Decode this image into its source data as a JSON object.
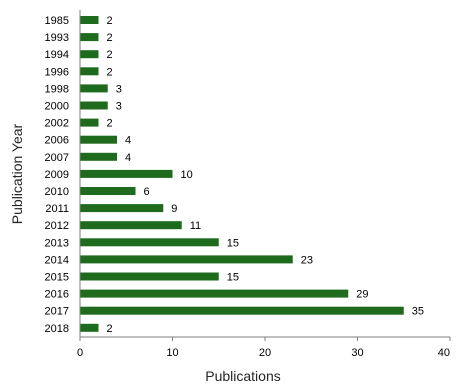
{
  "chart_data": {
    "type": "bar",
    "orientation": "horizontal",
    "categories": [
      "1985",
      "1993",
      "1994",
      "1996",
      "1998",
      "2000",
      "2002",
      "2006",
      "2007",
      "2009",
      "2010",
      "2011",
      "2012",
      "2013",
      "2014",
      "2015",
      "2016",
      "2017",
      "2018"
    ],
    "values": [
      2,
      2,
      2,
      2,
      3,
      3,
      2,
      4,
      4,
      10,
      6,
      9,
      11,
      15,
      23,
      15,
      29,
      35,
      2
    ],
    "title": "",
    "xlabel": "Publications",
    "ylabel": "Publication Year",
    "xlim": [
      0,
      40
    ],
    "xticks": [
      0,
      10,
      20,
      30,
      40
    ],
    "grid": false,
    "legend": "none",
    "bar_color": "#1e6b1e",
    "axis_color": "#7f7f7f"
  }
}
